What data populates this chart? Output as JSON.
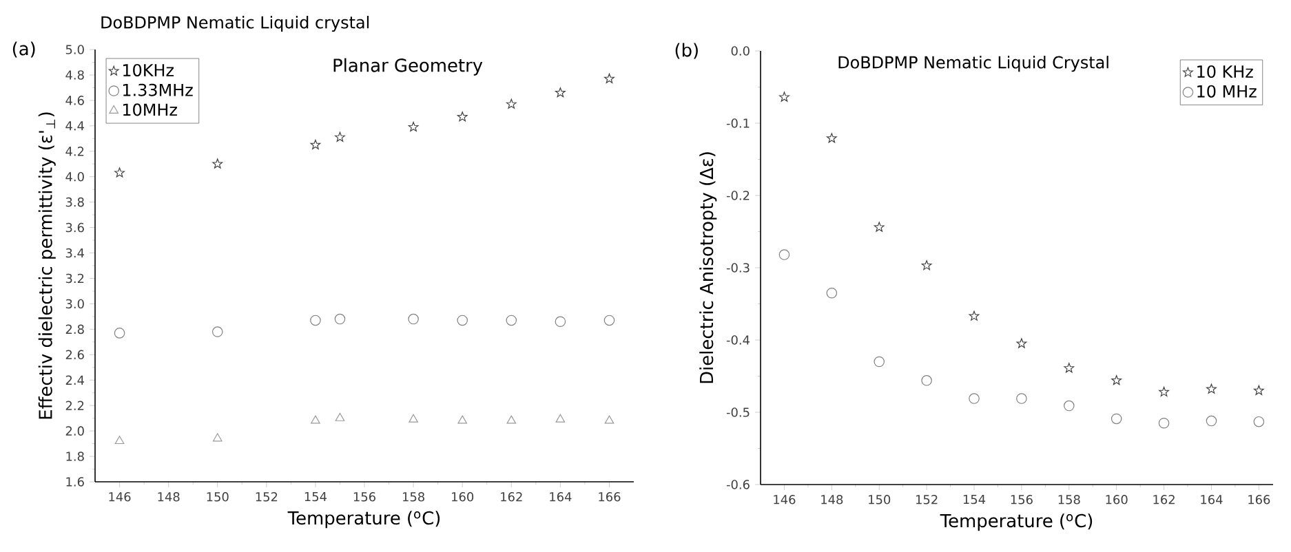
{
  "chart_data": [
    {
      "type": "scatter",
      "title": "DoBDPMP Nematic Liquid crystal",
      "xlabel": "Temperature ($^{o}$C)",
      "ylabel": "Effectiv dielectric permittivity (ε'$_{⊥}$)",
      "annotations": [
        "(a)",
        "Planar Geometry"
      ],
      "x": [
        146,
        150,
        154,
        155,
        158,
        160,
        162,
        164,
        166
      ],
      "series": [
        {
          "name": "10KHz",
          "color": "#404040",
          "marker": "star",
          "values": [
            4.03,
            4.1,
            4.25,
            4.31,
            4.39,
            4.47,
            4.57,
            4.66,
            4.77
          ]
        },
        {
          "name": "1.33MHz",
          "color": "#808080",
          "marker": "circle",
          "values": [
            2.77,
            2.78,
            2.87,
            2.88,
            2.88,
            2.87,
            2.87,
            2.86,
            2.87
          ]
        },
        {
          "name": "10MHz",
          "color": "#999999",
          "marker": "triangle",
          "values": [
            1.92,
            1.94,
            2.08,
            2.1,
            2.09,
            2.08,
            2.08,
            2.09,
            2.08
          ]
        }
      ],
      "xlim": [
        145,
        167
      ],
      "ylim": [
        1.6,
        5.0
      ],
      "xticks": [
        146,
        148,
        150,
        152,
        154,
        156,
        158,
        160,
        162,
        164,
        166
      ],
      "yticks": [
        {
          "value": 1.6,
          "label": "1.6"
        },
        {
          "value": 1.8,
          "label": "1.8"
        },
        {
          "value": 2.0,
          "label": "2.0"
        },
        {
          "value": 2.2,
          "label": "2.2"
        },
        {
          "value": 2.4,
          "label": "2.4"
        },
        {
          "value": 2.6,
          "label": "2.6"
        },
        {
          "value": 2.8,
          "label": "2.8"
        },
        {
          "value": 3.0,
          "label": "3.0"
        },
        {
          "value": 3.2,
          "label": "3.2"
        },
        {
          "value": 3.4,
          "label": "3.4"
        },
        {
          "value": 3.6,
          "label": "3.6"
        },
        {
          "value": 3.8,
          "label": "3.8"
        },
        {
          "value": 4.0,
          "label": "4.0"
        },
        {
          "value": 4.2,
          "label": "4.2"
        },
        {
          "value": 4.4,
          "label": "4.4"
        },
        {
          "value": 4.6,
          "label": "4.6"
        },
        {
          "value": 4.8,
          "label": "4.8"
        },
        {
          "value": 5.0,
          "label": "5.0"
        }
      ],
      "legend": "top left"
    },
    {
      "type": "scatter",
      "title": "DoBDPMP  Nematic Liquid Crystal",
      "xlabel": "Temperature ($^{o}$C)",
      "ylabel": "Dielectric Anisotropty (Δε)",
      "annotations": [
        "(b)"
      ],
      "x": [
        146,
        148,
        150,
        152,
        154,
        156,
        158,
        160,
        162,
        164,
        166
      ],
      "series": [
        {
          "name": "10 KHz",
          "color": "#404040",
          "marker": "star",
          "values": [
            -0.064,
            -0.121,
            -0.244,
            -0.297,
            -0.367,
            -0.405,
            -0.439,
            -0.456,
            -0.472,
            -0.468,
            -0.47
          ]
        },
        {
          "name": "10 MHz",
          "color": "#808080",
          "marker": "circle",
          "values": [
            -0.282,
            -0.335,
            -0.43,
            -0.456,
            -0.481,
            -0.481,
            -0.491,
            -0.509,
            -0.515,
            -0.512,
            -0.513
          ]
        }
      ],
      "xlim": [
        145,
        166.6
      ],
      "ylim": [
        -0.6,
        0.0
      ],
      "xticks": [
        146,
        148,
        150,
        152,
        154,
        156,
        158,
        160,
        162,
        164,
        166
      ],
      "yticks": [
        {
          "value": -0.6,
          "label": "-0.6"
        },
        {
          "value": -0.5,
          "label": "-0.5"
        },
        {
          "value": -0.4,
          "label": "-0.4"
        },
        {
          "value": -0.3,
          "label": "-0.3"
        },
        {
          "value": -0.2,
          "label": "-0.2"
        },
        {
          "value": -0.1,
          "label": "-0.1"
        },
        {
          "value": 0.0,
          "label": "0.0"
        }
      ],
      "legend": "top right"
    }
  ]
}
